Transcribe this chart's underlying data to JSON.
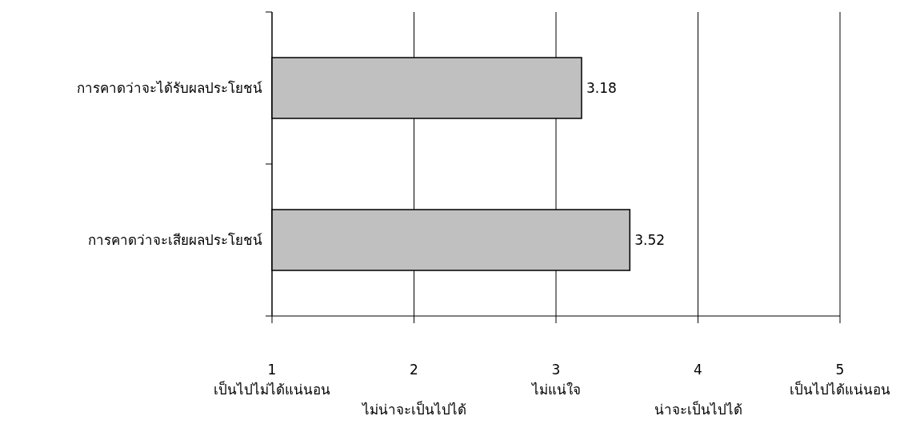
{
  "chart_data": {
    "type": "bar",
    "orientation": "horizontal",
    "categories": [
      "การคาดว่าจะได้รับผลประโยชน์",
      "การคาดว่าจะเสียผลประโยชน์"
    ],
    "values": [
      3.18,
      3.52
    ],
    "color": "#c0c0c0",
    "xlim": [
      1,
      5
    ],
    "xticks": [
      1,
      2,
      3,
      4,
      5
    ],
    "annotations": [
      "เป็นไปไม่ได้แน่นอน",
      "ไม่น่าจะเป็นไปได้",
      "ไม่แน่ใจ",
      "น่าจะเป็นไปได้",
      "เป็นไปได้แน่นอน"
    ],
    "grid": "x",
    "data_labels": true
  }
}
